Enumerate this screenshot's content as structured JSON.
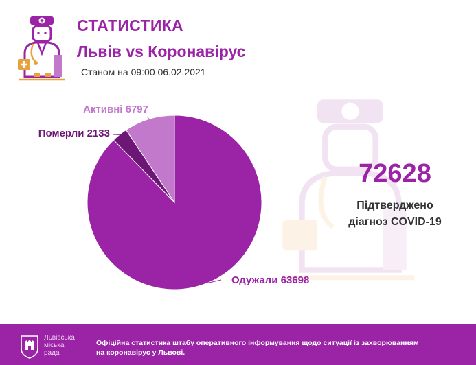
{
  "header": {
    "title": "СТАТИСТИКА",
    "subtitle": "Львів vs Коронавірус",
    "as_of_prefix": "Станом на ",
    "as_of_value": "09:00 06.02.2021"
  },
  "summary": {
    "total": "72628",
    "label_line1": "Підтверджено",
    "label_line2": "діагноз COVID-19"
  },
  "chart_data": {
    "type": "pie",
    "slices": [
      {
        "label": "Одужали 63698",
        "value": 63698,
        "color": "#9b23a6"
      },
      {
        "label": "Активні 6797",
        "value": 6797,
        "color": "#c279cb"
      },
      {
        "label": "Померли 2133",
        "value": 2133,
        "color": "#6c1775"
      }
    ]
  },
  "footer": {
    "org_line1": "Львівська",
    "org_line2": "міська",
    "org_line3": "рада",
    "text": "Офіційна статистика штабу оперативного інформування щодо ситуації із захворюванням на коронавірус у Львові."
  },
  "colors": {
    "accent": "#9b23a6",
    "accent_light": "#c279cb",
    "accent_dark": "#6c1775",
    "text_dark": "#333333",
    "footer_bg": "#9b23a6"
  },
  "icons": {
    "header_logo": "doctor-icon",
    "background_watermark": "doctor-icon",
    "footer_logo": "lviv-coat-of-arms-icon"
  }
}
